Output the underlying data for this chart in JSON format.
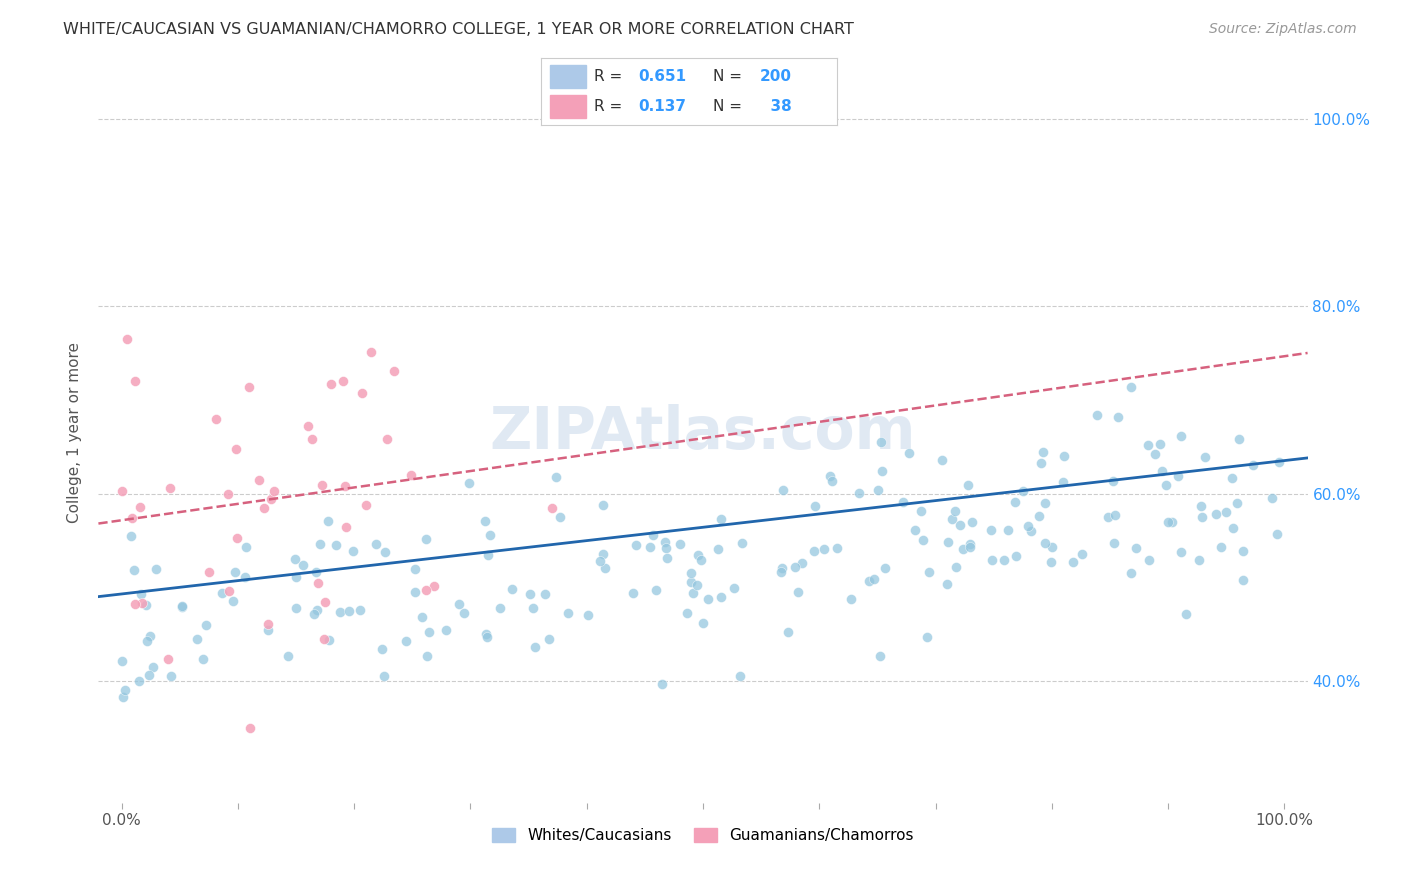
{
  "title": "WHITE/CAUCASIAN VS GUAMANIAN/CHAMORRO COLLEGE, 1 YEAR OR MORE CORRELATION CHART",
  "source": "Source: ZipAtlas.com",
  "ylabel": "College, 1 year or more",
  "xlim": [
    -0.02,
    1.02
  ],
  "ylim": [
    0.27,
    1.06
  ],
  "ytick_values": [
    0.4,
    0.6,
    0.8,
    1.0
  ],
  "blue_R": 0.651,
  "blue_N": 200,
  "pink_R": 0.137,
  "pink_N": 38,
  "blue_color": "#92c5de",
  "pink_color": "#f4a0b8",
  "blue_line_color": "#2166ac",
  "pink_line_color": "#d6617e",
  "background_color": "#ffffff",
  "grid_color": "#cccccc",
  "title_color": "#333333",
  "source_color": "#999999",
  "legend_label_blue": "Whites/Caucasians",
  "legend_label_pink": "Guamanians/Chamorros",
  "watermark": "ZIPAtlas.com",
  "blue_line_y0": 0.49,
  "blue_line_y1": 0.638,
  "pink_line_y0": 0.568,
  "pink_line_y1": 0.75
}
